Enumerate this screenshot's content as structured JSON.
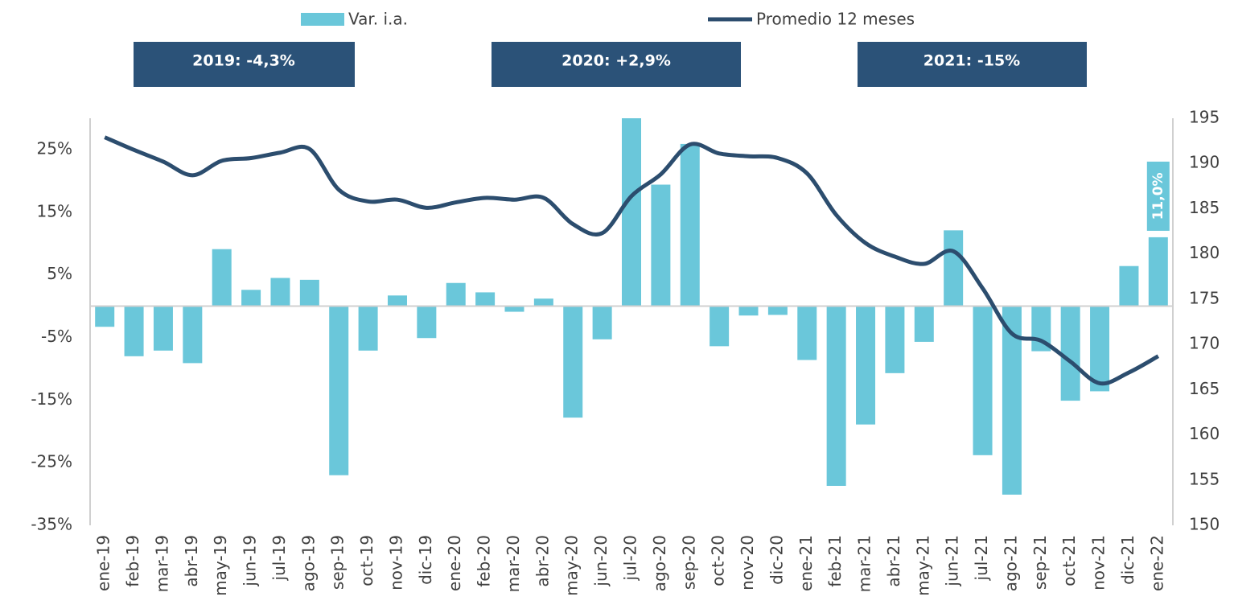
{
  "chart_data": {
    "type": "bar-line",
    "categories": [
      "ene-19",
      "feb-19",
      "mar-19",
      "abr-19",
      "may-19",
      "jun-19",
      "jul-19",
      "ago-19",
      "sep-19",
      "oct-19",
      "nov-19",
      "dic-19",
      "ene-20",
      "feb-20",
      "mar-20",
      "abr-20",
      "may-20",
      "jun-20",
      "jul-20",
      "ago-20",
      "sep-20",
      "oct-20",
      "nov-20",
      "dic-20",
      "ene-21",
      "feb-21",
      "mar-21",
      "abr-21",
      "may-21",
      "jun-21",
      "jul-21",
      "ago-21",
      "sep-21",
      "oct-21",
      "nov-21",
      "dic-21",
      "ene-22"
    ],
    "series": [
      {
        "name": "Var. i.a.",
        "type": "bar",
        "color": "#6ac7da",
        "values": [
          -3.3,
          -8.0,
          -7.1,
          -9.1,
          9.1,
          2.6,
          4.5,
          4.2,
          -27.0,
          -7.1,
          1.7,
          -5.1,
          3.7,
          2.2,
          -0.9,
          1.2,
          -17.8,
          -5.3,
          30,
          19.4,
          25.9,
          -6.4,
          -1.5,
          -1.4,
          -8.6,
          -28.7,
          -18.9,
          -10.7,
          -5.7,
          12.1,
          -23.8,
          -30.1,
          -7.2,
          -15.1,
          -13.6,
          6.4,
          11.0
        ],
        "value_labels": [
          null,
          null,
          null,
          null,
          null,
          null,
          null,
          null,
          null,
          null,
          null,
          null,
          null,
          null,
          null,
          null,
          null,
          null,
          null,
          null,
          null,
          null,
          null,
          null,
          null,
          null,
          null,
          null,
          null,
          null,
          null,
          null,
          null,
          null,
          null,
          null,
          "11,0%"
        ]
      },
      {
        "name": "Promedio 12 meses",
        "type": "line",
        "color": "#2c4d6e",
        "axis": "y2",
        "values": [
          192.9,
          191.5,
          190.2,
          188.7,
          190.3,
          190.6,
          191.2,
          191.6,
          187.1,
          185.8,
          186.0,
          185.1,
          185.7,
          186.2,
          186.0,
          186.2,
          183.3,
          182.3,
          186.4,
          188.8,
          192.1,
          191.1,
          190.8,
          190.6,
          188.9,
          184.3,
          181.2,
          179.7,
          178.9,
          180.3,
          176.2,
          171.2,
          170.4,
          168.1,
          165.7,
          166.9,
          168.7
        ]
      }
    ],
    "annotations": [
      "2019: -4,3%",
      "2020: +2,9%",
      "2021: -15%"
    ],
    "ylim": [
      -35,
      30
    ],
    "yticks": [
      {
        "value": -35,
        "label": "-35%"
      },
      {
        "value": -25,
        "label": "-25%"
      },
      {
        "value": -15,
        "label": "-15%"
      },
      {
        "value": -5,
        "label": "-5%"
      },
      {
        "value": 5,
        "label": "5%"
      },
      {
        "value": 15,
        "label": "15%"
      },
      {
        "value": 25,
        "label": "25%"
      }
    ],
    "y2lim": [
      150,
      195
    ],
    "y2ticks": [
      150,
      155,
      160,
      165,
      170,
      175,
      180,
      185,
      190,
      195
    ],
    "legend": "top",
    "grid": false
  }
}
